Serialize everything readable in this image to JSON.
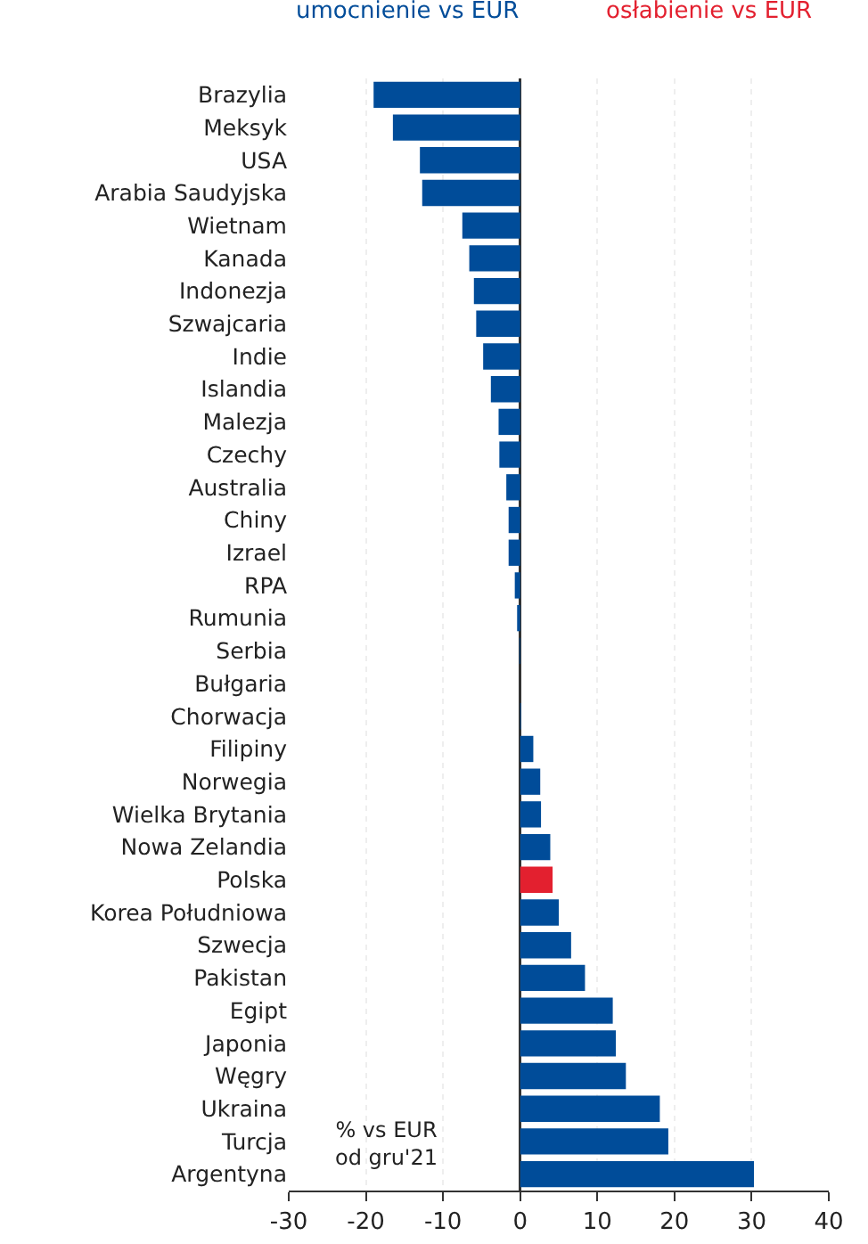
{
  "chart_data": {
    "type": "bar",
    "orientation": "horizontal",
    "categories": [
      "Brazylia",
      "Meksyk",
      "USA",
      "Arabia Saudyjska",
      "Wietnam",
      "Kanada",
      "Indonezja",
      "Szwajcaria",
      "Indie",
      "Islandia",
      "Malezja",
      "Czechy",
      "Australia",
      "Chiny",
      "Izrael",
      "RPA",
      "Rumunia",
      "Serbia",
      "Bułgaria",
      "Chorwacja",
      "Filipiny",
      "Norwegia",
      "Wielka Brytania",
      "Nowa Zelandia",
      "Polska",
      "Korea Południowa",
      "Szwecja",
      "Pakistan",
      "Egipt",
      "Japonia",
      "Węgry",
      "Ukraina",
      "Turcja",
      "Argentyna"
    ],
    "values": [
      -19.0,
      -16.5,
      -13.0,
      -12.7,
      -7.5,
      -6.6,
      -6.0,
      -5.7,
      -4.8,
      -3.8,
      -2.8,
      -2.7,
      -1.8,
      -1.5,
      -1.5,
      -0.7,
      -0.4,
      -0.1,
      0.0,
      0.1,
      1.7,
      2.6,
      2.7,
      3.9,
      4.2,
      5.0,
      6.6,
      8.4,
      12.0,
      12.4,
      13.7,
      18.1,
      19.2,
      30.3
    ],
    "colors": [
      "#004c99",
      "#004c99",
      "#004c99",
      "#004c99",
      "#004c99",
      "#004c99",
      "#004c99",
      "#004c99",
      "#004c99",
      "#004c99",
      "#004c99",
      "#004c99",
      "#004c99",
      "#004c99",
      "#004c99",
      "#004c99",
      "#004c99",
      "#004c99",
      "#004c99",
      "#004c99",
      "#004c99",
      "#004c99",
      "#004c99",
      "#004c99",
      "#e3202f",
      "#004c99",
      "#004c99",
      "#004c99",
      "#004c99",
      "#004c99",
      "#004c99",
      "#004c99",
      "#004c99",
      "#004c99"
    ],
    "xlim": [
      -30,
      40
    ],
    "xticks": [
      -30,
      -20,
      -10,
      0,
      10,
      20,
      30,
      40
    ],
    "grid": "x",
    "annotations": [
      "umocnienie vs EUR",
      "osłabienie vs EUR",
      "% vs EUR\nod gru'21"
    ]
  }
}
